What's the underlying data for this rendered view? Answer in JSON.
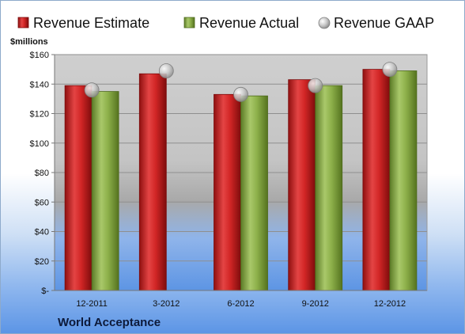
{
  "chart_data": {
    "type": "bar",
    "units_label": "$millions",
    "company": "World Acceptance",
    "categories": [
      "12-2011",
      "3-2012",
      "6-2012",
      "9-2012",
      "12-2012"
    ],
    "series": [
      {
        "name": "Revenue Estimate",
        "kind": "bar",
        "color": "#d42a2a",
        "values": [
          139,
          147,
          133,
          143,
          150
        ]
      },
      {
        "name": "Revenue Actual",
        "kind": "bar",
        "color": "#8db04a",
        "values": [
          135,
          null,
          132,
          139,
          149
        ]
      },
      {
        "name": "Revenue GAAP",
        "kind": "marker",
        "color": "#bfbfbf",
        "values": [
          136,
          149,
          133,
          139,
          150
        ]
      }
    ],
    "ylim": [
      0,
      160
    ],
    "yticks": [
      0,
      20,
      40,
      60,
      80,
      100,
      120,
      140,
      160
    ],
    "ytick_labels": [
      "$-",
      "$20",
      "$40",
      "$60",
      "$80",
      "$100",
      "$120",
      "$140",
      "$160"
    ],
    "grid": true,
    "legend_position": "top"
  }
}
